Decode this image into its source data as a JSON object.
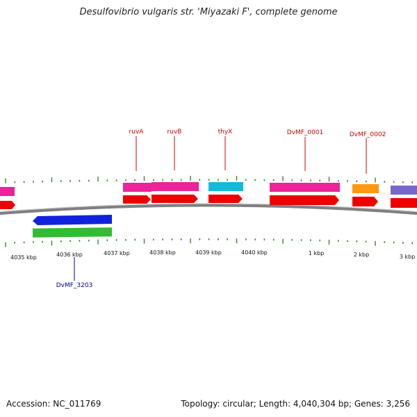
{
  "title": "Desulfovibrio vulgaris str. 'Miyazaki F', complete genome",
  "footer": {
    "accession": "Accession: NC_011769",
    "stats": "Topology: circular; Length: 4,040,304 bp; Genes: 3,256"
  },
  "colors": {
    "backbone": "#808080",
    "tick": "#2e8b2e",
    "label_forward": "#cc0000",
    "label_reverse": "#00008b",
    "cds_red": "#ee0000",
    "magenta": "#ee2299",
    "cyan": "#11bbdd",
    "orange": "#ff9911",
    "purple": "#7766cc",
    "blue": "#1122dd",
    "green": "#33bb33"
  },
  "tick_labels": [
    "4035 kbp",
    "4036 kbp",
    "4037 kbp",
    "4038 kbp",
    "4039 kbp",
    "4040 kbp",
    "1 kbp",
    "2 kbp",
    "3 kbp"
  ],
  "gene_labels": [
    {
      "name": "ruvA",
      "strand": "forward"
    },
    {
      "name": "ruvB",
      "strand": "forward"
    },
    {
      "name": "thyX",
      "strand": "forward"
    },
    {
      "name": "DvMF_0001",
      "strand": "forward"
    },
    {
      "name": "DvMF_0002",
      "strand": "forward"
    },
    {
      "name": "DvMF_3203",
      "strand": "reverse"
    }
  ]
}
